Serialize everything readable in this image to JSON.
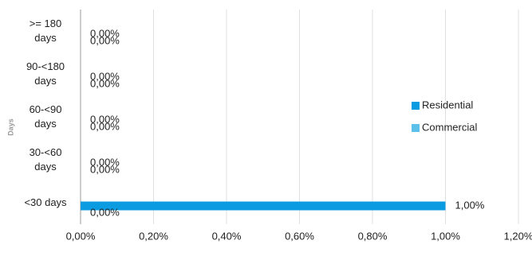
{
  "chart_data": {
    "type": "hbar",
    "y_label": "Days",
    "categories": [
      ">= 180 days",
      "90-<180 days",
      "60-<90 days",
      "30-<60 days",
      "<30 days"
    ],
    "series": [
      {
        "name": "Residential",
        "color": "#0a9be0",
        "values": [
          0,
          0,
          0,
          0,
          1
        ],
        "value_labels": [
          "0,00%",
          "0,00%",
          "0,00%",
          "0,00%",
          "1,00%"
        ]
      },
      {
        "name": "Commercial",
        "color": "#5bc0ea",
        "values": [
          0,
          0,
          0,
          0,
          0
        ],
        "value_labels": [
          "0,00%",
          "0,00%",
          "0,00%",
          "0,00%",
          "0,00%"
        ]
      }
    ],
    "xlim": [
      0,
      1.2
    ],
    "xticks": [
      {
        "value": 0,
        "label": "0,00%"
      },
      {
        "value": 0.2,
        "label": "0,20%"
      },
      {
        "value": 0.4,
        "label": "0,40%"
      },
      {
        "value": 0.6,
        "label": "0,60%"
      },
      {
        "value": 0.8,
        "label": "0,80%"
      },
      {
        "value": 1,
        "label": "1,00%"
      },
      {
        "value": 1.2,
        "label": "1,20%"
      }
    ],
    "grid": true,
    "legend": "right"
  }
}
